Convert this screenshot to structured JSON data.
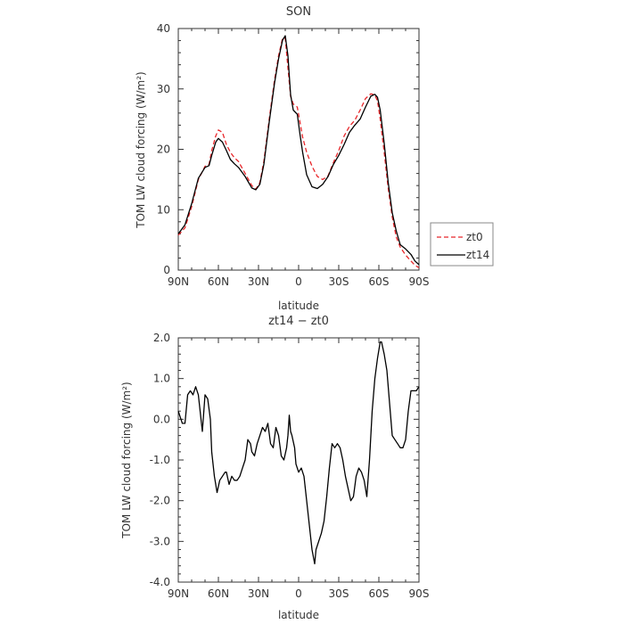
{
  "colors": {
    "zt0": "#e8262a",
    "zt14": "#000000",
    "axis": "#333333"
  },
  "chart_data": [
    {
      "type": "line",
      "title": "SON",
      "xlabel": "latitude",
      "ylabel": "TOM LW cloud forcing (W/m²)",
      "xlim": [
        90,
        -90
      ],
      "ylim": [
        0,
        40
      ],
      "x_ticks": [
        90,
        60,
        30,
        0,
        -30,
        -60,
        -90
      ],
      "x_tick_labels": [
        "90N",
        "60N",
        "30N",
        "0",
        "30S",
        "60S",
        "90S"
      ],
      "y_ticks": [
        0,
        10,
        20,
        30,
        40
      ],
      "y_tick_labels": [
        "0",
        "10",
        "20",
        "30",
        "40"
      ],
      "legend": {
        "placement": "right-outside",
        "entries": [
          "zt0",
          "zt14"
        ]
      },
      "series": [
        {
          "name": "zt0",
          "style": "dashed",
          "color": "#e8262a",
          "x": [
            90,
            85,
            80,
            75,
            70,
            67,
            65,
            62,
            60,
            57,
            54,
            51,
            48,
            45,
            40,
            35,
            32,
            29,
            26,
            22,
            18,
            15,
            12,
            10,
            8,
            6,
            4,
            1,
            -1,
            -3,
            -6,
            -10,
            -14,
            -18,
            -22,
            -26,
            -30,
            -34,
            -38,
            -42,
            -46,
            -50,
            -54,
            -57,
            -59,
            -61,
            -64,
            -67,
            -70,
            -73,
            -76,
            -80,
            -84,
            -87,
            -90
          ],
          "y": [
            5.8,
            7.0,
            10.5,
            15.0,
            17.2,
            17.5,
            19.8,
            22.2,
            23.2,
            22.8,
            20.8,
            19.5,
            18.6,
            18.0,
            16.0,
            14.0,
            13.4,
            14.5,
            18.0,
            25.0,
            31.5,
            35.5,
            38.4,
            38.4,
            33.5,
            28.8,
            27.5,
            27.0,
            24.5,
            22.0,
            19.5,
            17.2,
            15.5,
            15.0,
            15.6,
            17.8,
            19.8,
            22.2,
            23.8,
            24.8,
            26.5,
            28.4,
            29.2,
            29.0,
            28.0,
            25.0,
            19.5,
            13.5,
            8.8,
            5.5,
            3.8,
            2.5,
            1.5,
            0.8,
            0.4
          ]
        },
        {
          "name": "zt14",
          "style": "solid",
          "color": "#000000",
          "x": [
            90,
            85,
            80,
            75,
            70,
            67,
            65,
            62,
            60,
            57,
            54,
            51,
            48,
            45,
            40,
            35,
            32,
            29,
            26,
            22,
            18,
            15,
            12,
            10,
            8,
            6,
            4,
            1,
            -1,
            -3,
            -6,
            -10,
            -14,
            -18,
            -22,
            -26,
            -30,
            -34,
            -38,
            -42,
            -46,
            -50,
            -54,
            -57,
            -59,
            -61,
            -64,
            -67,
            -70,
            -73,
            -76,
            -80,
            -84,
            -87,
            -90
          ],
          "y": [
            6.0,
            7.5,
            11.0,
            15.2,
            17.0,
            17.3,
            19.0,
            21.2,
            21.8,
            21.2,
            19.8,
            18.3,
            17.6,
            17.0,
            15.5,
            13.6,
            13.3,
            14.2,
            17.5,
            24.5,
            31.0,
            35.0,
            38.1,
            38.8,
            35.5,
            29.0,
            26.5,
            25.8,
            22.5,
            19.5,
            15.8,
            13.8,
            13.5,
            14.2,
            15.5,
            17.5,
            19.0,
            20.8,
            22.8,
            24.0,
            25.0,
            27.0,
            28.8,
            29.1,
            28.6,
            26.5,
            21.0,
            14.5,
            9.5,
            6.5,
            4.2,
            3.5,
            2.6,
            1.5,
            0.9
          ]
        }
      ]
    },
    {
      "type": "line",
      "title": "zt14 − zt0",
      "xlabel": "latitude",
      "ylabel": "TOM LW cloud forcing (W/m²)",
      "xlim": [
        90,
        -90
      ],
      "ylim": [
        -4.0,
        2.0
      ],
      "x_ticks": [
        90,
        60,
        30,
        0,
        -30,
        -60,
        -90
      ],
      "x_tick_labels": [
        "90N",
        "60N",
        "30N",
        "0",
        "30S",
        "60S",
        "90S"
      ],
      "y_ticks": [
        -4,
        -3,
        -2,
        -1,
        0,
        1,
        2
      ],
      "y_tick_labels": [
        "-4.0",
        "-3.0",
        "-2.0",
        "-1.0",
        "0.0",
        "1.0",
        "2.0"
      ],
      "series": [
        {
          "style": "solid",
          "color": "#000000",
          "x": [
            90,
            88,
            87,
            85,
            83,
            81,
            79,
            77,
            75,
            74,
            72,
            70,
            68,
            66,
            65,
            63,
            61,
            59,
            57,
            55,
            54,
            52,
            50,
            48,
            46,
            44,
            42,
            40,
            38,
            36,
            35,
            33,
            31,
            29,
            27,
            25,
            23,
            21,
            19,
            17,
            15,
            13,
            11,
            9,
            8,
            7,
            6,
            5,
            3,
            2,
            0,
            -2,
            -4,
            -6,
            -8,
            -10,
            -12,
            -13,
            -15,
            -17,
            -19,
            -21,
            -23,
            -25,
            -27,
            -29,
            -31,
            -33,
            -35,
            -37,
            -39,
            -41,
            -43,
            -45,
            -47,
            -49,
            -51,
            -53,
            -55,
            -57,
            -59,
            -61,
            -62,
            -64,
            -66,
            -68,
            -70,
            -72,
            -74,
            -76,
            -78,
            -80,
            -82,
            -84,
            -86,
            -88,
            -90
          ],
          "y": [
            0.2,
            0.0,
            -0.1,
            -0.1,
            0.6,
            0.7,
            0.6,
            0.8,
            0.6,
            0.3,
            -0.3,
            0.6,
            0.5,
            0.0,
            -0.8,
            -1.4,
            -1.8,
            -1.5,
            -1.4,
            -1.3,
            -1.3,
            -1.6,
            -1.4,
            -1.5,
            -1.5,
            -1.4,
            -1.2,
            -1.0,
            -0.5,
            -0.6,
            -0.8,
            -0.9,
            -0.6,
            -0.4,
            -0.2,
            -0.3,
            -0.1,
            -0.6,
            -0.7,
            -0.2,
            -0.4,
            -0.9,
            -1.0,
            -0.7,
            -0.4,
            0.1,
            -0.3,
            -0.4,
            -0.7,
            -1.1,
            -1.3,
            -1.2,
            -1.4,
            -2.0,
            -2.6,
            -3.2,
            -3.55,
            -3.2,
            -3.0,
            -2.8,
            -2.5,
            -1.9,
            -1.2,
            -0.6,
            -0.7,
            -0.6,
            -0.7,
            -1.0,
            -1.4,
            -1.7,
            -2.0,
            -1.9,
            -1.4,
            -1.2,
            -1.3,
            -1.5,
            -1.9,
            -1.0,
            0.2,
            1.0,
            1.5,
            1.9,
            1.9,
            1.6,
            1.2,
            0.4,
            -0.4,
            -0.5,
            -0.6,
            -0.7,
            -0.7,
            -0.5,
            0.2,
            0.7,
            0.7,
            0.7,
            0.8
          ]
        }
      ]
    }
  ]
}
